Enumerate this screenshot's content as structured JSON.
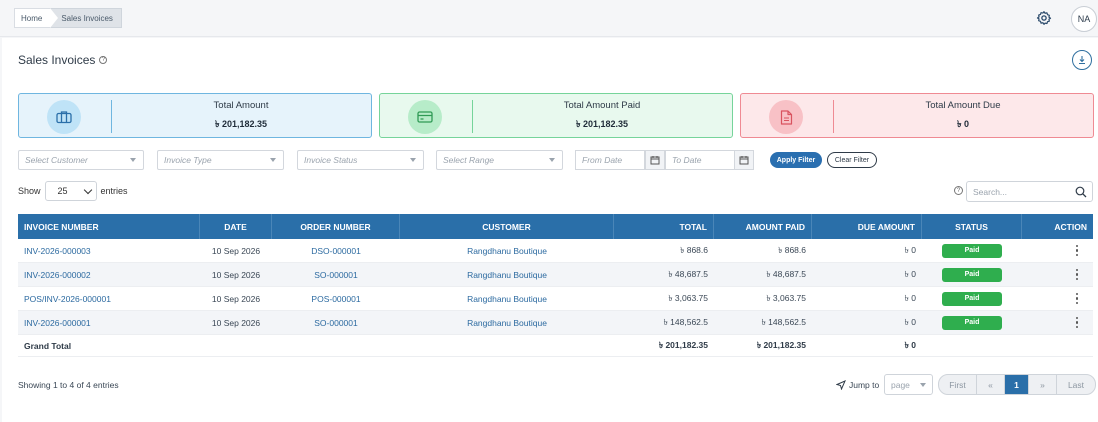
{
  "breadcrumb": {
    "home": "Home",
    "current": "Sales Invoices"
  },
  "header": {
    "avatar_initials": "NA"
  },
  "page": {
    "title": "Sales Invoices"
  },
  "cards": [
    {
      "label": "Total Amount",
      "value": "৳ 201,182.35",
      "color": "#6fb6e0"
    },
    {
      "label": "Total Amount Paid",
      "value": "৳ 201,182.35",
      "color": "#76d49a"
    },
    {
      "label": "Total Amount Due",
      "value": "৳ 0",
      "color": "#ef8a93"
    }
  ],
  "filters": {
    "customer_placeholder": "Select Customer",
    "invoice_type_placeholder": "Invoice Type",
    "invoice_status_placeholder": "Invoice Status",
    "range_placeholder": "Select Range",
    "from_date_placeholder": "From Date",
    "to_date_placeholder": "To Date",
    "apply_label": "Apply Filter",
    "clear_label": "Clear Filter"
  },
  "entries": {
    "show_label": "Show",
    "value": "25",
    "entries_label": "entries"
  },
  "search": {
    "placeholder": "Search..."
  },
  "table": {
    "headers": [
      "INVOICE NUMBER",
      "DATE",
      "ORDER NUMBER",
      "CUSTOMER",
      "TOTAL",
      "AMOUNT PAID",
      "DUE AMOUNT",
      "STATUS",
      "ACTION"
    ],
    "rows": [
      {
        "invoice": "INV-2026-000003",
        "date": "10 Sep 2026",
        "order": "DSO-000001",
        "customer": "Rangdhanu Boutique",
        "total": "৳ 868.6",
        "paid": "৳ 868.6",
        "due": "৳ 0",
        "status": "Paid"
      },
      {
        "invoice": "INV-2026-000002",
        "date": "10 Sep 2026",
        "order": "SO-000001",
        "customer": "Rangdhanu Boutique",
        "total": "৳ 48,687.5",
        "paid": "৳ 48,687.5",
        "due": "৳ 0",
        "status": "Paid"
      },
      {
        "invoice": "POS/INV-2026-000001",
        "date": "10 Sep 2026",
        "order": "POS-000001",
        "customer": "Rangdhanu Boutique",
        "total": "৳ 3,063.75",
        "paid": "৳ 3,063.75",
        "due": "৳ 0",
        "status": "Paid"
      },
      {
        "invoice": "INV-2026-000001",
        "date": "10 Sep 2026",
        "order": "SO-000001",
        "customer": "Rangdhanu Boutique",
        "total": "৳ 148,562.5",
        "paid": "৳ 148,562.5",
        "due": "৳ 0",
        "status": "Paid"
      }
    ],
    "footer": {
      "label": "Grand Total",
      "total": "৳ 201,182.35",
      "paid": "৳ 201,182.35",
      "due": "৳ 0"
    }
  },
  "pagination": {
    "showing": "Showing 1 to 4 of 4 entries",
    "jump_label": "Jump to",
    "page_placeholder": "page",
    "first": "First",
    "prev": "«",
    "current": "1",
    "next": "»",
    "last": "Last"
  }
}
